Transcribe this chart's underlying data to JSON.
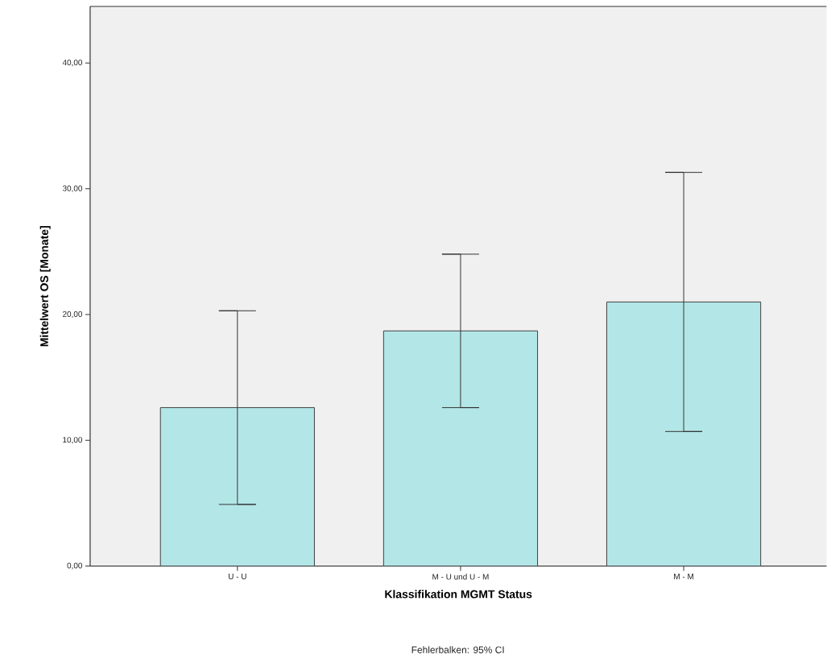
{
  "chart_data": {
    "type": "bar",
    "xlabel": "Klassifikation MGMT Status",
    "ylabel": "Mittelwert OS [Monate]",
    "annotations": [
      "Fehlerbalken: 95% CI"
    ],
    "categories": [
      "U - U",
      "M - U und U - M",
      "M - M"
    ],
    "values": [
      12.6,
      18.7,
      21.0
    ],
    "errors": [
      7.7,
      6.1,
      10.3
    ],
    "color": "#b3e6e7",
    "ylim": [
      0,
      44.5
    ],
    "yticks": [
      {
        "value": 0,
        "label": "0,00"
      },
      {
        "value": 10,
        "label": "10,00"
      },
      {
        "value": 20,
        "label": "20,00"
      },
      {
        "value": 30,
        "label": "30,00"
      },
      {
        "value": 40,
        "label": "40,00"
      }
    ],
    "grid": false
  }
}
